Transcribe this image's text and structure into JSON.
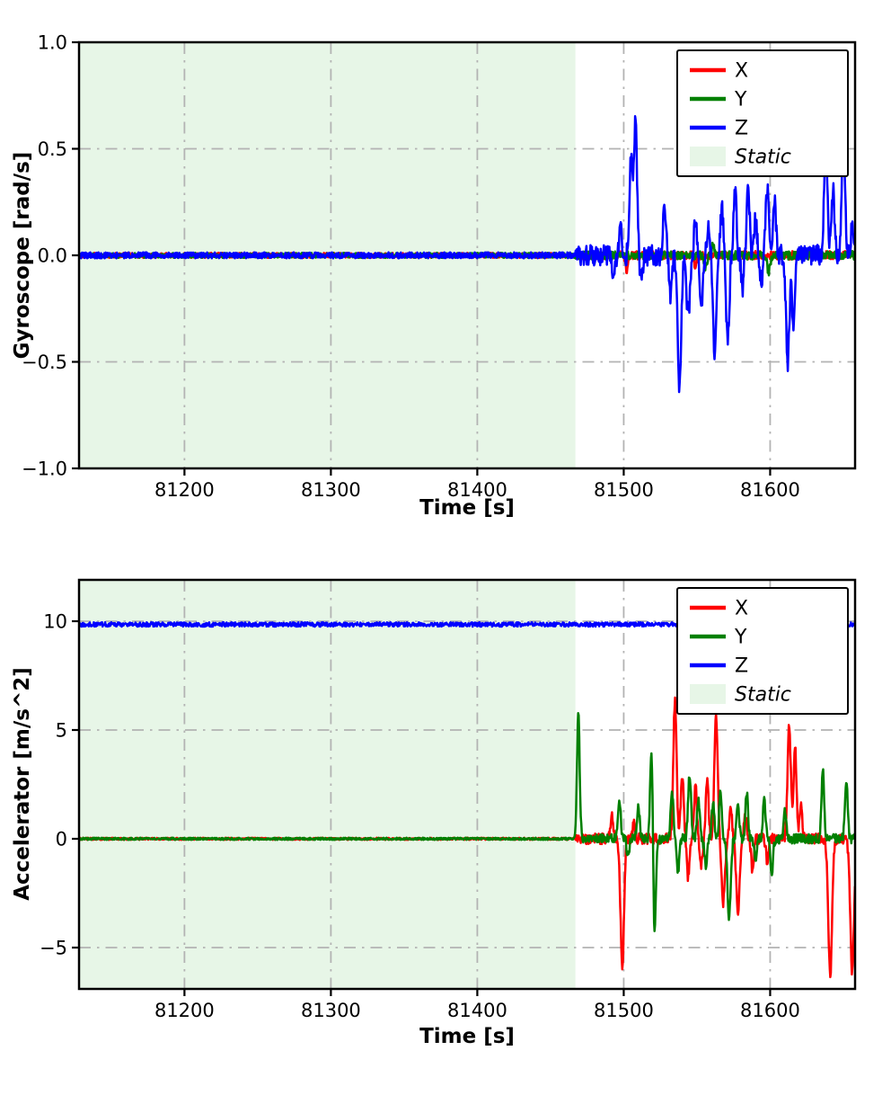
{
  "figure": {
    "background": "#ffffff"
  },
  "chart_data": [
    {
      "type": "line",
      "title": "",
      "xlabel": "Time [s]",
      "ylabel": "Gyroscope [rad/s]",
      "xlim": [
        81128,
        81658
      ],
      "ylim": [
        -1.0,
        1.0
      ],
      "xticks": [
        81200,
        81300,
        81400,
        81500,
        81600
      ],
      "xtick_labels": [
        "81200",
        "81300",
        "81400",
        "81500",
        "81600"
      ],
      "yticks": [
        -1.0,
        -0.5,
        0.0,
        0.5,
        1.0
      ],
      "ytick_labels": [
        "−1.0",
        "−0.5",
        "0.0",
        "0.5",
        "1.0"
      ],
      "grid": true,
      "grid_color": "#b3b3b3",
      "axis_color": "#000000",
      "legend": {
        "position": "upper right",
        "entries": [
          "X",
          "Y",
          "Z",
          "Static"
        ]
      },
      "static_region": {
        "label": "Static",
        "start": 81128,
        "end": 81467,
        "color": "#e7f6e7"
      },
      "series": [
        {
          "name": "X",
          "color": "#ff0000",
          "baseline": 0,
          "noise_static": 0.012,
          "noise_active": 0.02,
          "spikes": [
            [
              81502,
              -0.07,
              1.0
            ],
            [
              81549,
              -0.05,
              0.9
            ]
          ]
        },
        {
          "name": "Y",
          "color": "#008000",
          "baseline": 0,
          "noise_static": 0.012,
          "noise_active": 0.02,
          "spikes": [
            [
              81556,
              -0.06,
              0.9
            ],
            [
              81561,
              0.05,
              0.9
            ],
            [
              81599,
              -0.08,
              1.0
            ]
          ]
        },
        {
          "name": "Z",
          "color": "#0000ff",
          "baseline": 0,
          "noise_static": 0.014,
          "noise_active": 0.05,
          "spikes": [
            [
              81493,
              -0.1,
              1.0
            ],
            [
              81498,
              0.12,
              0.9
            ],
            [
              81505,
              0.45,
              1.0
            ],
            [
              81508,
              0.61,
              1.1
            ],
            [
              81512,
              -0.13,
              0.9
            ],
            [
              81528,
              0.24,
              1.0
            ],
            [
              81532,
              -0.18,
              1.0
            ],
            [
              81538,
              -0.62,
              1.2
            ],
            [
              81544,
              -0.3,
              1.1
            ],
            [
              81549,
              0.18,
              0.9
            ],
            [
              81553,
              -0.25,
              1.0
            ],
            [
              81558,
              0.15,
              0.9
            ],
            [
              81562,
              -0.45,
              1.1
            ],
            [
              81567,
              0.22,
              1.0
            ],
            [
              81571,
              -0.42,
              1.1
            ],
            [
              81576,
              0.3,
              1.0
            ],
            [
              81581,
              -0.15,
              0.9
            ],
            [
              81585,
              0.32,
              1.0
            ],
            [
              81590,
              0.18,
              0.9
            ],
            [
              81594,
              -0.12,
              0.9
            ],
            [
              81598,
              0.33,
              1.0
            ],
            [
              81603,
              0.27,
              1.0
            ],
            [
              81612,
              -0.5,
              1.2
            ],
            [
              81616,
              -0.35,
              1.0
            ],
            [
              81638,
              0.55,
              1.1
            ],
            [
              81643,
              0.3,
              1.0
            ],
            [
              81650,
              0.58,
              1.1
            ],
            [
              81656,
              0.15,
              0.9
            ]
          ]
        }
      ]
    },
    {
      "type": "line",
      "title": "",
      "xlabel": "Time [s]",
      "ylabel": "Accelerator [m/s^2]",
      "xlim": [
        81128,
        81658
      ],
      "ylim": [
        -6.9,
        11.9
      ],
      "xticks": [
        81200,
        81300,
        81400,
        81500,
        81600
      ],
      "xtick_labels": [
        "81200",
        "81300",
        "81400",
        "81500",
        "81600"
      ],
      "yticks": [
        -5,
        0,
        5,
        10
      ],
      "ytick_labels": [
        "−5",
        "0",
        "5",
        "10"
      ],
      "grid": true,
      "grid_color": "#b3b3b3",
      "axis_color": "#000000",
      "legend": {
        "position": "upper right",
        "entries": [
          "X",
          "Y",
          "Z",
          "Static"
        ]
      },
      "static_region": {
        "label": "Static",
        "start": 81128,
        "end": 81467,
        "color": "#e7f6e7"
      },
      "series": [
        {
          "name": "X",
          "color": "#ff0000",
          "baseline": 0,
          "noise_static": 0.05,
          "noise_active": 0.25,
          "spikes": [
            [
              81492,
              1.0,
              0.9
            ],
            [
              81499,
              -5.9,
              1.2
            ],
            [
              81507,
              0.8,
              0.9
            ],
            [
              81535,
              6.4,
              1.1
            ],
            [
              81540,
              2.9,
              1.0
            ],
            [
              81544,
              -1.8,
              0.9
            ],
            [
              81549,
              2.4,
              0.9
            ],
            [
              81553,
              -1.2,
              0.9
            ],
            [
              81557,
              2.6,
              1.0
            ],
            [
              81563,
              5.9,
              1.1
            ],
            [
              81568,
              -2.9,
              1.1
            ],
            [
              81573,
              1.5,
              0.9
            ],
            [
              81578,
              -3.3,
              1.2
            ],
            [
              81583,
              1.0,
              0.9
            ],
            [
              81588,
              -1.5,
              0.9
            ],
            [
              81598,
              -1.0,
              0.9
            ],
            [
              81613,
              5.2,
              1.1
            ],
            [
              81617,
              4.2,
              1.0
            ],
            [
              81621,
              1.5,
              0.9
            ],
            [
              81641,
              -6.3,
              1.3
            ],
            [
              81656,
              -6.1,
              1.3
            ]
          ]
        },
        {
          "name": "Y",
          "color": "#008000",
          "baseline": 0,
          "noise_static": 0.05,
          "noise_active": 0.22,
          "spikes": [
            [
              81469,
              5.9,
              0.9
            ],
            [
              81497,
              1.9,
              0.9
            ],
            [
              81503,
              -0.8,
              0.9
            ],
            [
              81510,
              1.5,
              0.9
            ],
            [
              81519,
              4.3,
              0.9
            ],
            [
              81521,
              -4.6,
              0.9
            ],
            [
              81533,
              2.2,
              0.9
            ],
            [
              81537,
              -1.5,
              0.9
            ],
            [
              81545,
              3.0,
              1.0
            ],
            [
              81551,
              1.8,
              0.9
            ],
            [
              81556,
              -1.2,
              0.9
            ],
            [
              81561,
              1.6,
              0.9
            ],
            [
              81566,
              2.2,
              0.9
            ],
            [
              81572,
              -3.6,
              1.1
            ],
            [
              81578,
              1.5,
              0.9
            ],
            [
              81584,
              2.1,
              0.9
            ],
            [
              81590,
              -1.0,
              0.9
            ],
            [
              81596,
              1.8,
              0.9
            ],
            [
              81601,
              -1.6,
              0.9
            ],
            [
              81610,
              1.2,
              0.9
            ],
            [
              81636,
              3.1,
              0.9
            ],
            [
              81652,
              2.7,
              0.9
            ]
          ]
        },
        {
          "name": "Z",
          "color": "#0000ff",
          "baseline": 9.85,
          "noise_static": 0.1,
          "noise_active": 0.1,
          "spikes": []
        }
      ]
    }
  ]
}
